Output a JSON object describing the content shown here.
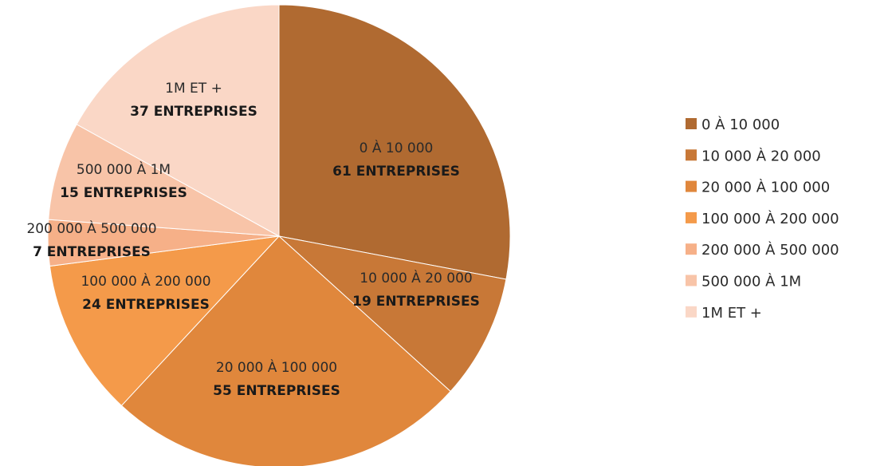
{
  "chart_data": {
    "type": "pie",
    "categories": [
      "0 À 10 000",
      "10 000 À 20 000",
      "20 000 À 100 000",
      "100 000 À 200 000",
      "200 000 À 500 000",
      "500 000 À 1M",
      "1M ET +"
    ],
    "values": [
      61,
      19,
      55,
      24,
      7,
      15,
      37
    ],
    "value_labels": [
      "61 ENTREPRISES",
      "19 ENTREPRISES",
      "55 ENTREPRISES",
      "24 ENTREPRISES",
      "7 ENTREPRISES",
      "15 ENTREPRISES",
      "37 ENTREPRISES"
    ],
    "colors": [
      "#b06a31",
      "#c87837",
      "#e0873c",
      "#f49a4a",
      "#f6b088",
      "#f8c4a8",
      "#fad7c6"
    ],
    "title": "",
    "legend_position": "right",
    "start_angle": "12 o'clock",
    "direction": "clockwise"
  }
}
